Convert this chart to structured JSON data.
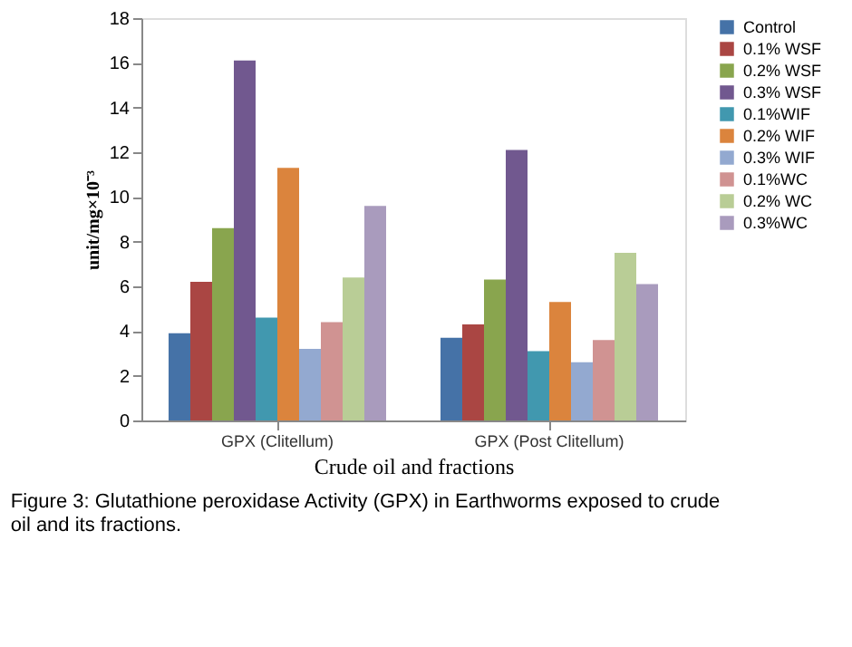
{
  "chart_data": {
    "type": "bar",
    "categories": [
      "GPX (Clitellum)",
      "GPX (Post Clitellum)"
    ],
    "xlabel": "Crude oil and fractions",
    "ylabel": "unit/mg×10⁻³",
    "ylim": [
      0,
      18
    ],
    "yticks": [
      0,
      2,
      4,
      6,
      8,
      10,
      12,
      14,
      16,
      18
    ],
    "grid": false,
    "legend": "right",
    "series": [
      {
        "name": "Control",
        "color": "#4572a7",
        "values": [
          3.9,
          3.7
        ]
      },
      {
        "name": "0.1% WSF",
        "color": "#aa4643",
        "values": [
          6.2,
          4.3
        ]
      },
      {
        "name": "0.2% WSF",
        "color": "#89a54e",
        "values": [
          8.6,
          6.3
        ]
      },
      {
        "name": "0.3% WSF",
        "color": "#71588f",
        "values": [
          16.1,
          12.1
        ]
      },
      {
        "name": "0.1%WIF",
        "color": "#4198af",
        "values": [
          4.6,
          3.1
        ]
      },
      {
        "name": "0.2% WIF",
        "color": "#db843d",
        "values": [
          11.3,
          5.3
        ]
      },
      {
        "name": "0.3% WIF",
        "color": "#93a9d0",
        "values": [
          3.2,
          2.6
        ]
      },
      {
        "name": "0.1%WC",
        "color": "#d09392",
        "values": [
          4.4,
          3.6
        ]
      },
      {
        "name": "0.2% WC",
        "color": "#b9cd96",
        "values": [
          6.4,
          7.5
        ]
      },
      {
        "name": "0.3%WC",
        "color": "#a99bbd",
        "values": [
          9.6,
          6.1
        ]
      }
    ],
    "annotations": [
      "Figure 3: Glutathione peroxidase Activity (GPX) in Earthworms exposed to crude oil and its fractions."
    ]
  }
}
